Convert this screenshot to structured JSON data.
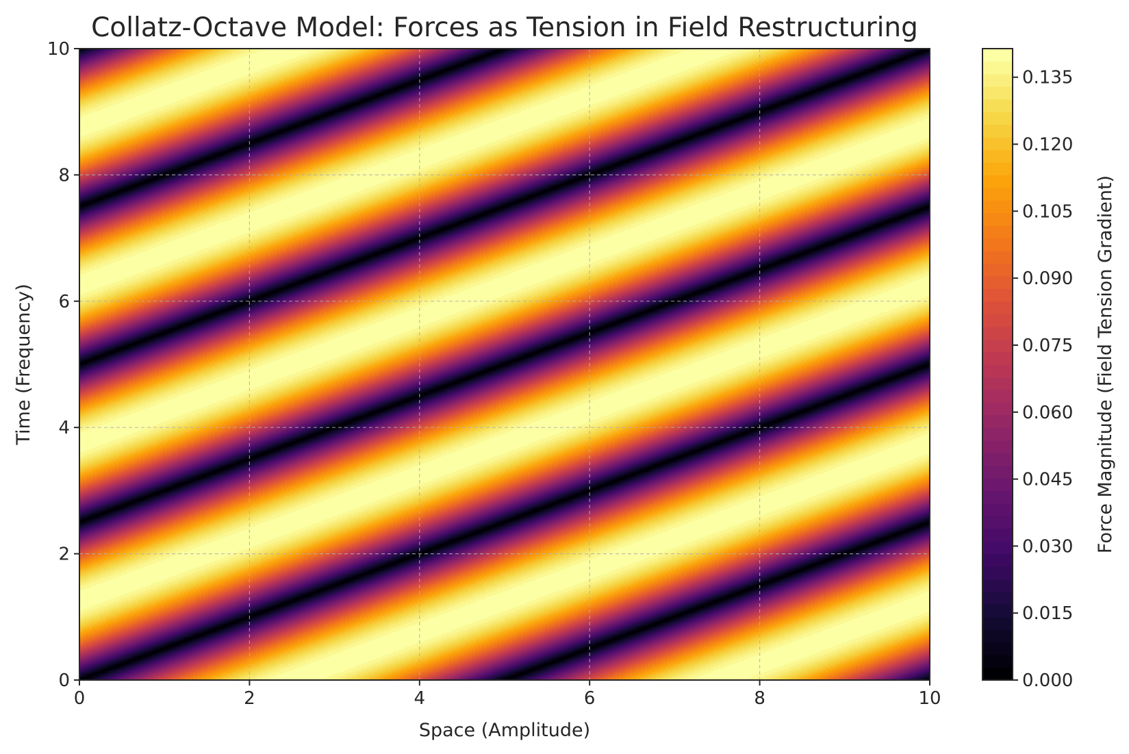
{
  "chart_data": {
    "type": "heatmap",
    "subtype": "filled-contour",
    "title": "Collatz-Octave Model: Forces as Tension in Field Restructuring",
    "xlabel": "Space (Amplitude)",
    "ylabel": "Time (Frequency)",
    "colorbar_label": "Force Magnitude (Field Tension Gradient)",
    "xlim": [
      0,
      10
    ],
    "ylim": [
      0,
      10
    ],
    "x_ticks": [
      0,
      2,
      4,
      6,
      8,
      10
    ],
    "y_ticks": [
      0,
      2,
      4,
      6,
      8,
      10
    ],
    "colorbar_range": [
      0,
      0.1414
    ],
    "colorbar_ticks": [
      "0.000",
      "0.015",
      "0.030",
      "0.045",
      "0.060",
      "0.075",
      "0.090",
      "0.105",
      "0.120",
      "0.135"
    ],
    "colormap": "inferno",
    "grid": true,
    "field": "|0.1414 * sin((2*pi/5)*(y - x/2))|",
    "zero_lines": "diagonal dark bands where y - x/2 is a multiple of 2.5"
  }
}
